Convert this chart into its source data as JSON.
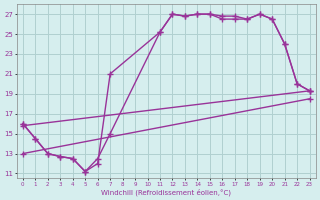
{
  "background_color": "#d6eeee",
  "grid_color": "#b0d0d0",
  "line_color": "#993399",
  "marker": "+",
  "markersize": 4,
  "linewidth": 1.0,
  "curve1_x": [
    0,
    1,
    2,
    3,
    4,
    5,
    6,
    7,
    11,
    12,
    13,
    14,
    15,
    16,
    17,
    18,
    19,
    20,
    21,
    22,
    23
  ],
  "curve1_y": [
    16.0,
    14.5,
    13.0,
    12.7,
    12.5,
    11.2,
    12.5,
    15.0,
    25.2,
    27.0,
    26.8,
    27.0,
    27.0,
    26.8,
    26.8,
    26.5,
    27.0,
    26.5,
    24.0,
    20.0,
    19.3
  ],
  "curve2_x": [
    0,
    1,
    2,
    3,
    4,
    5,
    6,
    7,
    11,
    12,
    13,
    14,
    15,
    16,
    17,
    18,
    19,
    20,
    21,
    22,
    23
  ],
  "curve2_y": [
    16.0,
    14.5,
    13.0,
    12.7,
    12.5,
    11.2,
    12.0,
    21.0,
    25.2,
    27.0,
    26.8,
    27.0,
    27.0,
    26.5,
    26.5,
    26.5,
    27.0,
    26.5,
    24.0,
    20.0,
    19.3
  ],
  "line1_x": [
    0,
    23
  ],
  "line1_y": [
    15.8,
    19.3
  ],
  "line2_x": [
    0,
    23
  ],
  "line2_y": [
    13.0,
    18.5
  ],
  "xlabel": "Windchill (Refroidissement éolien,°C)",
  "yticks": [
    11,
    13,
    15,
    17,
    19,
    21,
    23,
    25,
    27
  ],
  "xlim": [
    -0.5,
    23.5
  ],
  "ylim": [
    10.5,
    28.0
  ]
}
